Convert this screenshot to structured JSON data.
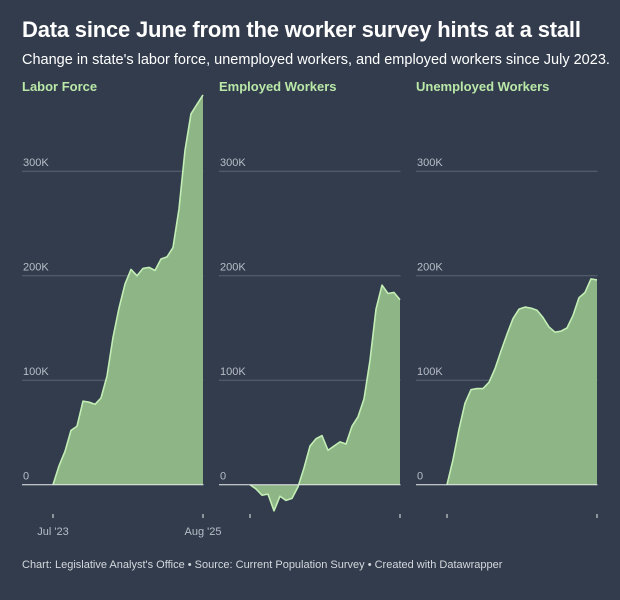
{
  "header": {
    "title": "Data since June from the worker survey hints at a stall",
    "subtitle": "Change in state's labor force, unemployed workers, and employed workers since July 2023."
  },
  "footer": {
    "credit": "Chart: Legislative Analyst's Office • Source: Current Population Survey • Created with Datawrapper"
  },
  "colors": {
    "background": "#323c4c",
    "area_fill": "#8db585",
    "area_line": "#c3eeb5",
    "panel_title": "#b9e8a8",
    "tick_label": "#b8bec8",
    "gridline": "#5a6474"
  },
  "chart_data": [
    {
      "type": "area",
      "title": "Labor Force",
      "xlabel": "",
      "ylabel": "",
      "ylim": [
        -28000,
        372000
      ],
      "y_ticks": [
        0,
        100000,
        200000,
        300000
      ],
      "y_tick_labels": [
        "0",
        "100K",
        "200K",
        "300K"
      ],
      "x_tick_labels": [
        "Jul '23",
        "Aug '25"
      ],
      "grid": true,
      "x": [
        "Jul 2023",
        "Aug 2023",
        "Sep 2023",
        "Oct 2023",
        "Nov 2023",
        "Dec 2023",
        "Jan 2024",
        "Feb 2024",
        "Mar 2024",
        "Apr 2024",
        "May 2024",
        "Jun 2024",
        "Jul 2024",
        "Aug 2024",
        "Sep 2024",
        "Oct 2024",
        "Nov 2024",
        "Dec 2024",
        "Jan 2025",
        "Feb 2025",
        "Mar 2025",
        "Apr 2025",
        "May 2025",
        "Jun 2025",
        "Jul 2025",
        "Aug 2025"
      ],
      "values": [
        0,
        18000,
        32000,
        52000,
        56000,
        80000,
        79000,
        77000,
        83000,
        104000,
        141000,
        169000,
        192000,
        206000,
        200000,
        207000,
        208000,
        205000,
        216000,
        218000,
        227000,
        264000,
        320000,
        355000,
        364000,
        373000
      ]
    },
    {
      "type": "area",
      "title": "Employed Workers",
      "xlabel": "",
      "ylabel": "",
      "ylim": [
        -28000,
        372000
      ],
      "y_ticks": [
        0,
        100000,
        200000,
        300000
      ],
      "y_tick_labels": [
        "0",
        "100K",
        "200K",
        "300K"
      ],
      "x_tick_labels": [
        "",
        ""
      ],
      "grid": true,
      "x": [
        "Jul 2023",
        "Aug 2023",
        "Sep 2023",
        "Oct 2023",
        "Nov 2023",
        "Dec 2023",
        "Jan 2024",
        "Feb 2024",
        "Mar 2024",
        "Apr 2024",
        "May 2024",
        "Jun 2024",
        "Jul 2024",
        "Aug 2024",
        "Sep 2024",
        "Oct 2024",
        "Nov 2024",
        "Dec 2024",
        "Jan 2025",
        "Feb 2025",
        "Mar 2025",
        "Apr 2025",
        "May 2025",
        "Jun 2025",
        "Jul 2025",
        "Aug 2025"
      ],
      "values": [
        0,
        -4000,
        -10000,
        -9000,
        -25000,
        -11000,
        -15000,
        -13000,
        -2000,
        16000,
        37000,
        44000,
        47000,
        33000,
        37000,
        41000,
        39000,
        56000,
        65000,
        82000,
        119000,
        168000,
        191000,
        183000,
        184000,
        177000
      ]
    },
    {
      "type": "area",
      "title": "Unemployed Workers",
      "xlabel": "",
      "ylabel": "",
      "ylim": [
        -28000,
        372000
      ],
      "y_ticks": [
        0,
        100000,
        200000,
        300000
      ],
      "y_tick_labels": [
        "0",
        "100K",
        "200K",
        "300K"
      ],
      "x_tick_labels": [
        "",
        ""
      ],
      "grid": true,
      "x": [
        "Jul 2023",
        "Aug 2023",
        "Sep 2023",
        "Oct 2023",
        "Nov 2023",
        "Dec 2023",
        "Jan 2024",
        "Feb 2024",
        "Mar 2024",
        "Apr 2024",
        "May 2024",
        "Jun 2024",
        "Jul 2024",
        "Aug 2024",
        "Sep 2024",
        "Oct 2024",
        "Nov 2024",
        "Dec 2024",
        "Jan 2025",
        "Feb 2025",
        "Mar 2025",
        "Apr 2025",
        "May 2025",
        "Jun 2025",
        "Jul 2025",
        "Aug 2025"
      ],
      "values": [
        0,
        24000,
        53000,
        78000,
        91000,
        92000,
        92000,
        98000,
        111000,
        128000,
        144000,
        159000,
        168000,
        170000,
        169000,
        167000,
        160000,
        151000,
        146000,
        147000,
        150000,
        162000,
        179000,
        184000,
        197000,
        196000
      ]
    }
  ]
}
